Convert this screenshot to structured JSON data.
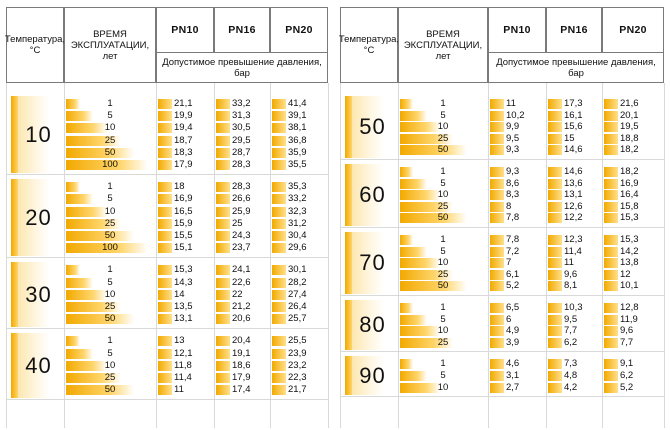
{
  "headers": {
    "temp": "Температура, °С",
    "years": "ВРЕМЯ ЭКСПЛУАТАЦИИ, лет",
    "pn": [
      "PN10",
      "PN16",
      "PN20"
    ],
    "pressure": "Допустимое превышение давления, бар"
  },
  "left_table": [
    {
      "temp": "10",
      "rows": [
        {
          "years": "1",
          "pn10": "21,1",
          "pn16": "33,2",
          "pn20": "41,4"
        },
        {
          "years": "5",
          "pn10": "19,9",
          "pn16": "31,3",
          "pn20": "39,1"
        },
        {
          "years": "10",
          "pn10": "19,4",
          "pn16": "30,5",
          "pn20": "38,1"
        },
        {
          "years": "25",
          "pn10": "18,7",
          "pn16": "29,5",
          "pn20": "36,8"
        },
        {
          "years": "50",
          "pn10": "18,3",
          "pn16": "28,7",
          "pn20": "35,9"
        },
        {
          "years": "100",
          "pn10": "17,9",
          "pn16": "28,3",
          "pn20": "35,5"
        }
      ]
    },
    {
      "temp": "20",
      "rows": [
        {
          "years": "1",
          "pn10": "18",
          "pn16": "28,3",
          "pn20": "35,3"
        },
        {
          "years": "5",
          "pn10": "16,9",
          "pn16": "26,6",
          "pn20": "33,2"
        },
        {
          "years": "10",
          "pn10": "16,5",
          "pn16": "25,9",
          "pn20": "32,3"
        },
        {
          "years": "25",
          "pn10": "15,9",
          "pn16": "25",
          "pn20": "31,2"
        },
        {
          "years": "50",
          "pn10": "15,5",
          "pn16": "24,3",
          "pn20": "30,4"
        },
        {
          "years": "100",
          "pn10": "15,1",
          "pn16": "23,7",
          "pn20": "29,6"
        }
      ]
    },
    {
      "temp": "30",
      "rows": [
        {
          "years": "1",
          "pn10": "15,3",
          "pn16": "24,1",
          "pn20": "30,1"
        },
        {
          "years": "5",
          "pn10": "14,3",
          "pn16": "22,6",
          "pn20": "28,2"
        },
        {
          "years": "10",
          "pn10": "14",
          "pn16": "22",
          "pn20": "27,4"
        },
        {
          "years": "25",
          "pn10": "13,5",
          "pn16": "21,2",
          "pn20": "26,4"
        },
        {
          "years": "50",
          "pn10": "13,1",
          "pn16": "20,6",
          "pn20": "25,7"
        }
      ]
    },
    {
      "temp": "40",
      "rows": [
        {
          "years": "1",
          "pn10": "13",
          "pn16": "20,4",
          "pn20": "25,5"
        },
        {
          "years": "5",
          "pn10": "12,1",
          "pn16": "19,1",
          "pn20": "23,9"
        },
        {
          "years": "10",
          "pn10": "11,8",
          "pn16": "18,6",
          "pn20": "23,2"
        },
        {
          "years": "25",
          "pn10": "11,4",
          "pn16": "17,9",
          "pn20": "22,3"
        },
        {
          "years": "50",
          "pn10": "11",
          "pn16": "17,4",
          "pn20": "21,7"
        }
      ]
    }
  ],
  "right_table": [
    {
      "temp": "50",
      "rows": [
        {
          "years": "1",
          "pn10": "11",
          "pn16": "17,3",
          "pn20": "21,6"
        },
        {
          "years": "5",
          "pn10": "10,2",
          "pn16": "16,1",
          "pn20": "20,1"
        },
        {
          "years": "10",
          "pn10": "9,9",
          "pn16": "15,6",
          "pn20": "19,5"
        },
        {
          "years": "25",
          "pn10": "9,5",
          "pn16": "15",
          "pn20": "18,8"
        },
        {
          "years": "50",
          "pn10": "9,3",
          "pn16": "14,6",
          "pn20": "18,2"
        }
      ]
    },
    {
      "temp": "60",
      "rows": [
        {
          "years": "1",
          "pn10": "9,3",
          "pn16": "14,6",
          "pn20": "18,2"
        },
        {
          "years": "5",
          "pn10": "8,6",
          "pn16": "13,6",
          "pn20": "16,9"
        },
        {
          "years": "10",
          "pn10": "8,3",
          "pn16": "13,1",
          "pn20": "16,4"
        },
        {
          "years": "25",
          "pn10": "8",
          "pn16": "12,6",
          "pn20": "15,8"
        },
        {
          "years": "50",
          "pn10": "7,8",
          "pn16": "12,2",
          "pn20": "15,3"
        }
      ]
    },
    {
      "temp": "70",
      "rows": [
        {
          "years": "1",
          "pn10": "7,8",
          "pn16": "12,3",
          "pn20": "15,3"
        },
        {
          "years": "5",
          "pn10": "7,2",
          "pn16": "11,4",
          "pn20": "14,2"
        },
        {
          "years": "10",
          "pn10": "7",
          "pn16": "11",
          "pn20": "13,8"
        },
        {
          "years": "25",
          "pn10": "6,1",
          "pn16": "9,6",
          "pn20": "12"
        },
        {
          "years": "50",
          "pn10": "5,2",
          "pn16": "8,1",
          "pn20": "10,1"
        }
      ]
    },
    {
      "temp": "80",
      "rows": [
        {
          "years": "1",
          "pn10": "6,5",
          "pn16": "10,3",
          "pn20": "12,8"
        },
        {
          "years": "5",
          "pn10": "6",
          "pn16": "9,5",
          "pn20": "11,9"
        },
        {
          "years": "10",
          "pn10": "4,9",
          "pn16": "7,7",
          "pn20": "9,6"
        },
        {
          "years": "25",
          "pn10": "3,9",
          "pn16": "6,2",
          "pn20": "7,7"
        }
      ]
    },
    {
      "temp": "90",
      "rows": [
        {
          "years": "1",
          "pn10": "4,6",
          "pn16": "7,3",
          "pn20": "9,1"
        },
        {
          "years": "5",
          "pn10": "3,1",
          "pn16": "4,8",
          "pn20": "6,2"
        },
        {
          "years": "10",
          "pn10": "2,7",
          "pn16": "4,2",
          "pn20": "5,2"
        }
      ]
    }
  ]
}
